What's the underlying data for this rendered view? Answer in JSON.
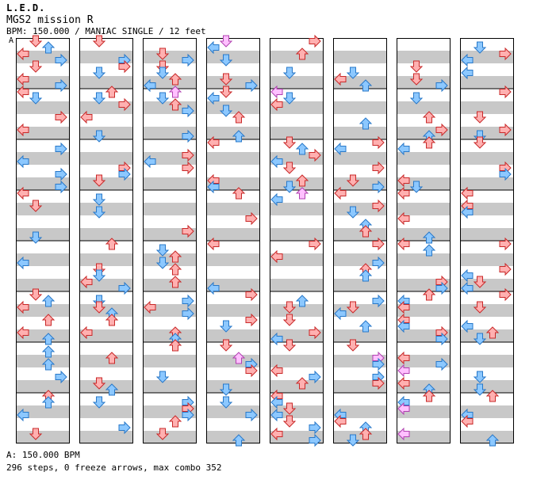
{
  "song": {
    "artist": "L.E.D.",
    "title": "MGS2 mission R",
    "meta": "BPM: 150.000 / MANIAC SINGLE / 12 feet",
    "bpm_marker": "A"
  },
  "footer": {
    "bpm_note": "A: 150.000 BPM",
    "stats": "296 steps, 0 freeze arrows, max combo 352"
  },
  "chart_data": {
    "type": "step-chart",
    "mode": "MANIAC SINGLE",
    "difficulty_feet": 12,
    "bpm": 150.0,
    "total_steps": 296,
    "freeze_arrows": 0,
    "max_combo": 352,
    "columns": 8,
    "measures_per_column": 8,
    "panels": [
      "left",
      "down",
      "up",
      "right"
    ],
    "colors": {
      "red_fill": "#ffb0b0",
      "red_stroke": "#c82828",
      "blue_fill": "#8cc8ff",
      "blue_stroke": "#2878c8",
      "pink_fill": "#ffc0ff",
      "pink_stroke": "#b040b0",
      "stripe": "#c8c8c8",
      "border": "#000000"
    }
  }
}
